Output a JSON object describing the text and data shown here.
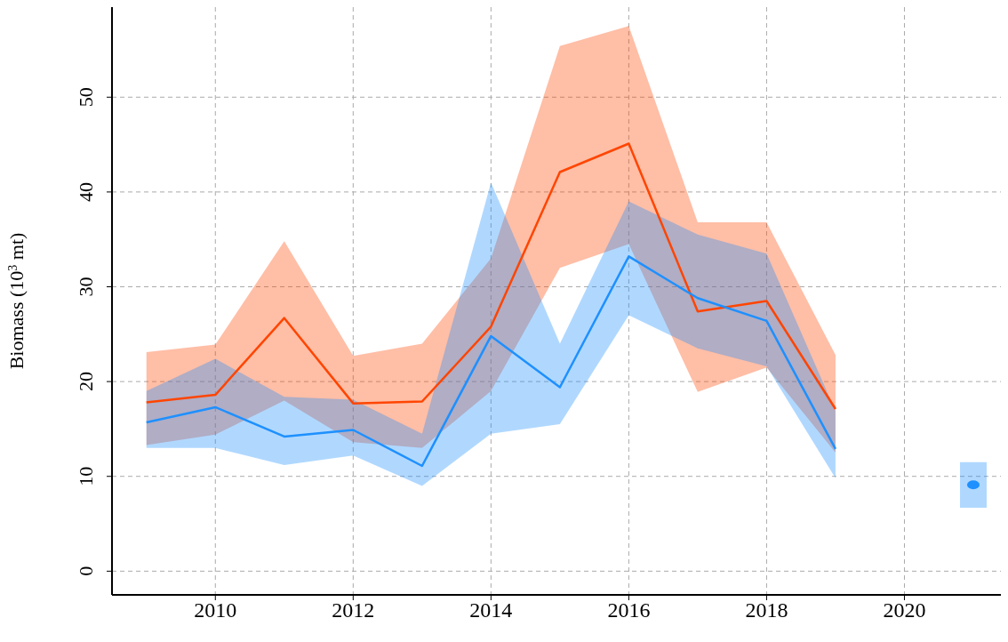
{
  "chart_data": {
    "type": "line",
    "ylabel": "Biomass (10$^{3}$ mt)",
    "x": [
      2009,
      2010,
      2011,
      2012,
      2013,
      2014,
      2015,
      2016,
      2017,
      2018,
      2019
    ],
    "series": [
      {
        "color": "#ff4500",
        "values": [
          17.8,
          18.6,
          26.7,
          17.7,
          17.9,
          25.8,
          42.1,
          45.1,
          27.4,
          28.5,
          17.1
        ],
        "lower": [
          13.3,
          14.4,
          18.0,
          13.6,
          13.0,
          19.0,
          32.0,
          34.5,
          18.9,
          21.5,
          12.5
        ],
        "upper": [
          23.1,
          23.9,
          34.8,
          22.7,
          24.0,
          33.0,
          55.4,
          57.5,
          36.8,
          36.8,
          22.8
        ]
      },
      {
        "color": "#1e90ff",
        "values": [
          15.7,
          17.3,
          14.2,
          14.9,
          11.1,
          24.8,
          19.4,
          33.2,
          28.8,
          26.4,
          12.9
        ],
        "lower": [
          13.0,
          13.0,
          11.2,
          12.2,
          9.0,
          14.5,
          15.5,
          27.0,
          23.5,
          21.6,
          9.8
        ],
        "upper": [
          19.0,
          22.4,
          18.4,
          18.1,
          14.5,
          41.0,
          24.0,
          39.0,
          35.5,
          33.5,
          16.9
        ]
      },
      {
        "type": "scatter",
        "marker": "circle",
        "color": "#1e90ff",
        "x": [
          2021
        ],
        "values": [
          9.1
        ],
        "errors": [
          [
            6.7,
            11.5
          ]
        ]
      }
    ],
    "xlim": [
      2008.5,
      2021.4
    ],
    "xticks": [
      2010,
      2012,
      2014,
      2016,
      2018,
      2020
    ],
    "ylim": [
      -2.5,
      59.5
    ],
    "yticks": [
      0,
      10,
      20,
      30,
      40,
      50
    ],
    "grid": true,
    "line_style": "solid",
    "marker": "none"
  }
}
